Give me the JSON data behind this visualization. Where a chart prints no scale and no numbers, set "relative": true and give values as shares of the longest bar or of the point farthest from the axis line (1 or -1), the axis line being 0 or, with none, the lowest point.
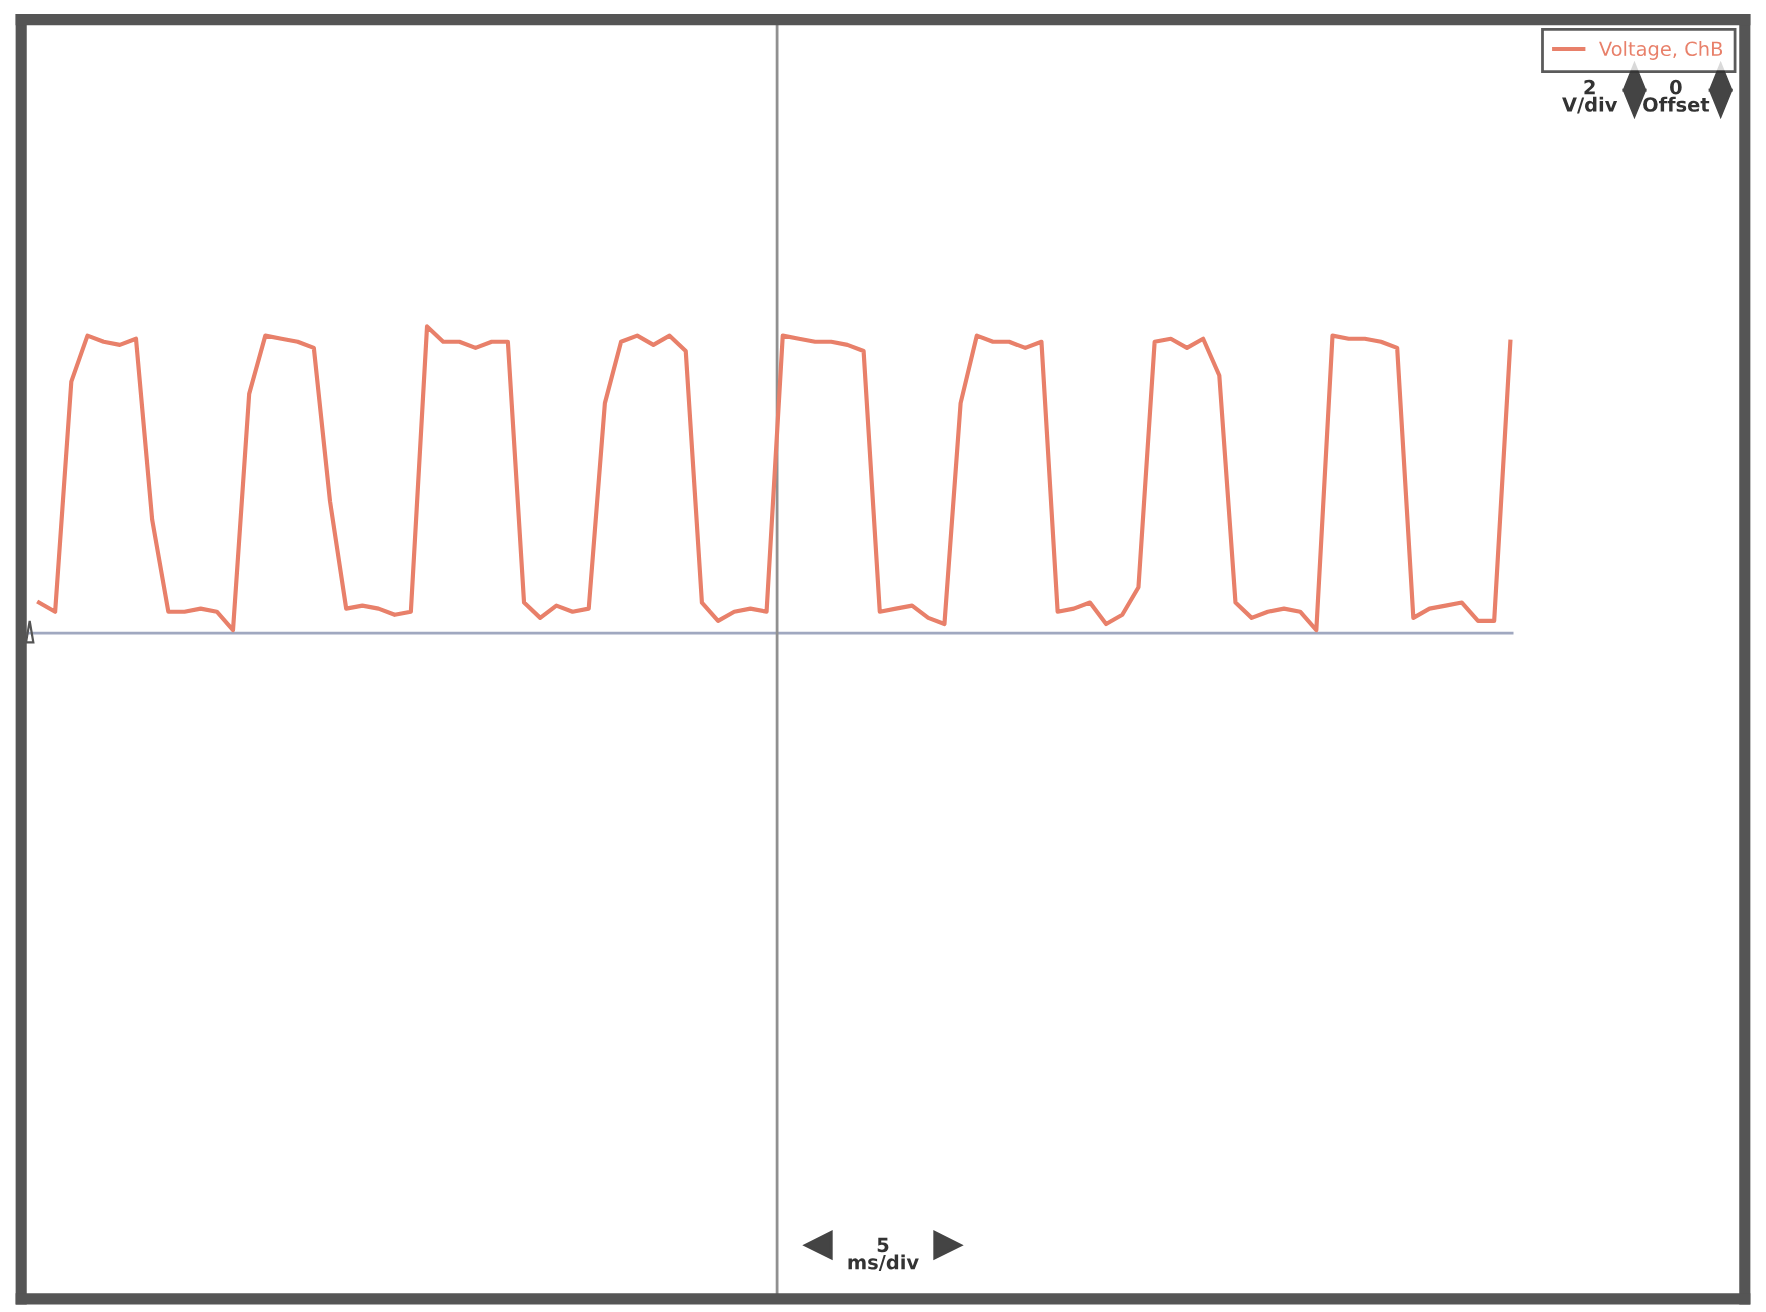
{
  "chart_data": {
    "type": "line",
    "relative": true,
    "categories": [
      null,
      null,
      null,
      null,
      null,
      null,
      null,
      null,
      null,
      null,
      null,
      null,
      null,
      null,
      null,
      null,
      null,
      null,
      null,
      null,
      null,
      null,
      null,
      null,
      null,
      null,
      null,
      null,
      null,
      null,
      null,
      null,
      null,
      null,
      null,
      null,
      null,
      null,
      null,
      null,
      null,
      null,
      null,
      null,
      null,
      null,
      null,
      null,
      null,
      null,
      null,
      null,
      null,
      null,
      null,
      null,
      null,
      null,
      null,
      null,
      null,
      null,
      null,
      null,
      null,
      null,
      null,
      null,
      null,
      null,
      null,
      null,
      null,
      null,
      null,
      null,
      null,
      null,
      null,
      null,
      null,
      null,
      null,
      null,
      null,
      null,
      null,
      null,
      null,
      null,
      null,
      null
    ],
    "series": [
      {
        "name": "Voltage, ChB",
        "color": "#e8806a",
        "values": [
          0.1,
          0.07,
          0.82,
          0.97,
          0.95,
          0.94,
          0.96,
          0.37,
          0.07,
          0.07,
          0.08,
          0.07,
          0.01,
          0.78,
          0.97,
          0.96,
          0.95,
          0.93,
          0.43,
          0.08,
          0.09,
          0.08,
          0.06,
          0.07,
          1,
          0.95,
          0.95,
          0.93,
          0.95,
          0.95,
          0.1,
          0.05,
          0.09,
          0.07,
          0.08,
          0.75,
          0.95,
          0.97,
          0.94,
          0.97,
          0.92,
          0.1,
          0.04,
          0.07,
          0.08,
          0.07,
          0.97,
          0.96,
          0.95,
          0.95,
          0.94,
          0.92,
          0.07,
          0.08,
          0.09,
          0.05,
          0.03,
          0.75,
          0.97,
          0.95,
          0.95,
          0.93,
          0.95,
          0.07,
          0.08,
          0.1,
          0.03,
          0.06,
          0.15,
          0.95,
          0.96,
          0.93,
          0.96,
          0.84,
          0.1,
          0.05,
          0.07,
          0.08,
          0.07,
          0.01,
          0.97,
          0.96,
          0.96,
          0.95,
          0.93,
          0.05,
          0.08,
          0.09,
          0.1,
          0.04,
          0.04,
          0.95
        ]
      }
    ],
    "annotations": [
      "2\nV/div",
      "0\nOffset",
      "5\nms/div"
    ],
    "legend": "top right",
    "line_style": "solid",
    "marker": "none"
  }
}
